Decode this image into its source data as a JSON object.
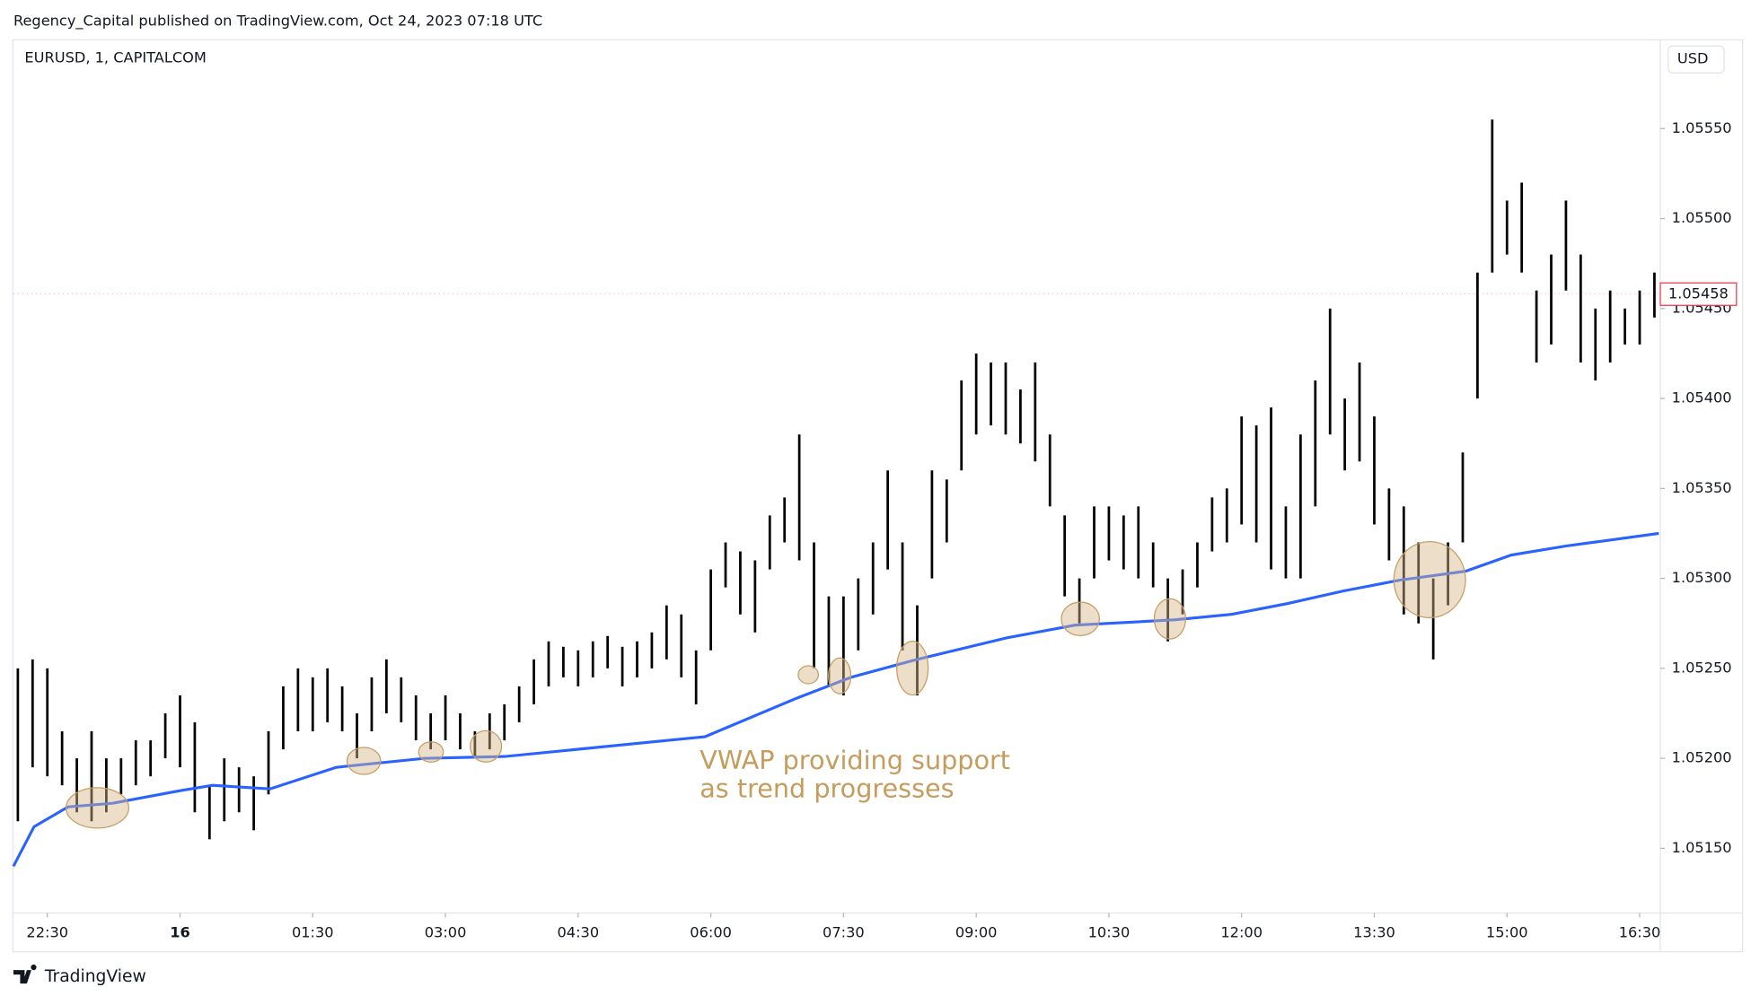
{
  "header": "Regency_Capital published on TradingView.com, Oct 24, 2023 07:18 UTC",
  "symbol": "EURUSD, 1, CAPITALCOM",
  "currency": "USD",
  "footer": "TradingView",
  "chart_data": {
    "type": "range",
    "annotation": [
      "VWAP providing support",
      "as trend progresses"
    ],
    "xlim": [
      -23,
      1094
    ],
    "xticks": [
      {
        "value": 0,
        "label": "22:30"
      },
      {
        "value": 90,
        "label": "16"
      },
      {
        "value": 180,
        "label": "01:30"
      },
      {
        "value": 270,
        "label": "03:00"
      },
      {
        "value": 360,
        "label": "04:30"
      },
      {
        "value": 450,
        "label": "06:00"
      },
      {
        "value": 540,
        "label": "07:30"
      },
      {
        "value": 630,
        "label": "09:00"
      },
      {
        "value": 720,
        "label": "10:30"
      },
      {
        "value": 810,
        "label": "12:00"
      },
      {
        "value": 900,
        "label": "13:30"
      },
      {
        "value": 990,
        "label": "15:00"
      },
      {
        "value": 1080,
        "label": "16:30"
      }
    ],
    "ylim": [
      1.05114,
      1.05599
    ],
    "yticks": [
      {
        "value": 1.0515,
        "label": "1.05150"
      },
      {
        "value": 1.052,
        "label": "1.05200"
      },
      {
        "value": 1.0525,
        "label": "1.05250"
      },
      {
        "value": 1.053,
        "label": "1.05300"
      },
      {
        "value": 1.0535,
        "label": "1.05350"
      },
      {
        "value": 1.054,
        "label": "1.05400"
      },
      {
        "value": 1.0545,
        "label": "1.05450"
      },
      {
        "value": 1.055,
        "label": "1.05500"
      },
      {
        "value": 1.0555,
        "label": "1.05550"
      }
    ],
    "grid": false,
    "last_price": {
      "value": 1.05458,
      "label": "1.05458",
      "color": "#f23645"
    },
    "series": [
      {
        "type": "range",
        "color": "#000000",
        "x": [
          -20,
          -10,
          0,
          10,
          20,
          30,
          40,
          50,
          60,
          70,
          80,
          90,
          100,
          110,
          120,
          130,
          140,
          150,
          160,
          170,
          180,
          190,
          200,
          210,
          220,
          230,
          240,
          250,
          260,
          270,
          280,
          290,
          300,
          310,
          320,
          330,
          340,
          350,
          360,
          370,
          380,
          390,
          400,
          410,
          420,
          430,
          440,
          450,
          460,
          470,
          480,
          490,
          500,
          510,
          520,
          530,
          540,
          550,
          560,
          570,
          580,
          590,
          600,
          610,
          620,
          630,
          640,
          650,
          660,
          670,
          680,
          690,
          700,
          710,
          720,
          730,
          740,
          750,
          760,
          770,
          780,
          790,
          800,
          810,
          820,
          830,
          840,
          850,
          860,
          870,
          880,
          890,
          900,
          910,
          920,
          930,
          940,
          950,
          960,
          970,
          980,
          990,
          1000,
          1010,
          1020,
          1030,
          1040,
          1050,
          1060,
          1070,
          1080,
          1090
        ],
        "low": [
          1.05165,
          1.05195,
          1.0519,
          1.05185,
          1.0517,
          1.05165,
          1.0517,
          1.0518,
          1.05185,
          1.0519,
          1.052,
          1.05195,
          1.0517,
          1.05155,
          1.05165,
          1.0517,
          1.0516,
          1.0518,
          1.05205,
          1.05215,
          1.05215,
          1.0522,
          1.05215,
          1.052,
          1.05215,
          1.05225,
          1.0522,
          1.0521,
          1.05205,
          1.0521,
          1.05205,
          1.052,
          1.05205,
          1.0521,
          1.0522,
          1.0523,
          1.0524,
          1.05245,
          1.0524,
          1.05245,
          1.0525,
          1.0524,
          1.05245,
          1.0525,
          1.05255,
          1.05245,
          1.0523,
          1.0526,
          1.05295,
          1.0528,
          1.0527,
          1.05305,
          1.0532,
          1.0531,
          1.0525,
          1.0524,
          1.05235,
          1.0526,
          1.0528,
          1.05305,
          1.0526,
          1.05235,
          1.053,
          1.0532,
          1.0536,
          1.0538,
          1.05385,
          1.0538,
          1.05375,
          1.05365,
          1.0534,
          1.0529,
          1.05275,
          1.053,
          1.0531,
          1.05305,
          1.053,
          1.05295,
          1.05265,
          1.0528,
          1.05295,
          1.05315,
          1.0532,
          1.0533,
          1.0532,
          1.05305,
          1.053,
          1.053,
          1.0534,
          1.0538,
          1.0536,
          1.05365,
          1.0533,
          1.0531,
          1.0528,
          1.05275,
          1.05255,
          1.05285,
          1.0532,
          1.054,
          1.0547,
          1.0548,
          1.0547,
          1.0542,
          1.0543,
          1.0546,
          1.0542,
          1.0541,
          1.0542,
          1.0543,
          1.0543,
          1.05445
        ],
        "high": [
          1.0525,
          1.05255,
          1.0525,
          1.05215,
          1.052,
          1.05215,
          1.052,
          1.052,
          1.0521,
          1.0521,
          1.05225,
          1.05235,
          1.0522,
          1.05185,
          1.052,
          1.05195,
          1.0519,
          1.05215,
          1.0524,
          1.0525,
          1.05245,
          1.0525,
          1.0524,
          1.05225,
          1.05245,
          1.05255,
          1.05245,
          1.05235,
          1.05225,
          1.05235,
          1.05225,
          1.05215,
          1.05225,
          1.0523,
          1.0524,
          1.05255,
          1.05265,
          1.05262,
          1.0526,
          1.05265,
          1.05268,
          1.05262,
          1.05265,
          1.0527,
          1.05285,
          1.0528,
          1.0526,
          1.05305,
          1.0532,
          1.05315,
          1.0531,
          1.05335,
          1.05345,
          1.0538,
          1.0532,
          1.0529,
          1.0529,
          1.053,
          1.0532,
          1.0536,
          1.0532,
          1.05285,
          1.0536,
          1.05355,
          1.0541,
          1.05425,
          1.0542,
          1.0542,
          1.05405,
          1.0542,
          1.0538,
          1.05335,
          1.053,
          1.0534,
          1.0534,
          1.05335,
          1.0534,
          1.0532,
          1.053,
          1.05305,
          1.0532,
          1.05345,
          1.0535,
          1.0539,
          1.05385,
          1.05395,
          1.0534,
          1.0538,
          1.0541,
          1.0545,
          1.054,
          1.0542,
          1.0539,
          1.0535,
          1.0534,
          1.0532,
          1.053,
          1.0532,
          1.0537,
          1.0547,
          1.05555,
          1.0551,
          1.0552,
          1.0546,
          1.0548,
          1.0551,
          1.0548,
          1.0545,
          1.0546,
          1.0545,
          1.0546,
          1.0547
        ]
      },
      {
        "type": "line",
        "color": "#2962ff",
        "x": [
          -23,
          -9,
          14,
          44,
          90,
          112,
          151,
          196,
          256,
          310,
          446,
          507,
          545,
          590,
          651,
          697,
          765,
          803,
          841,
          879,
          917,
          962,
          993,
          1030,
          1093
        ],
        "values": [
          1.0514,
          1.05162,
          1.05173,
          1.05175,
          1.05182,
          1.05185,
          1.05183,
          1.05195,
          1.052,
          1.05201,
          1.05212,
          1.05233,
          1.05245,
          1.05255,
          1.05267,
          1.05274,
          1.05277,
          1.0528,
          1.05286,
          1.05293,
          1.05299,
          1.05304,
          1.05313,
          1.05318,
          1.05325
        ]
      }
    ]
  }
}
